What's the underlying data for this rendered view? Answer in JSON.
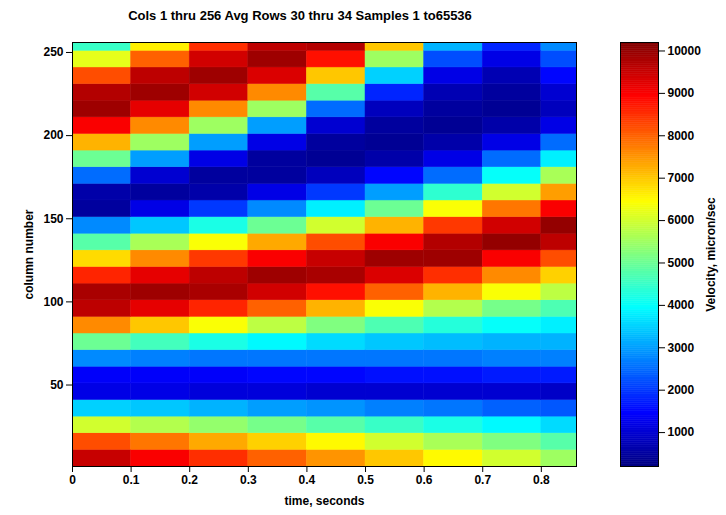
{
  "chart_data": {
    "type": "heatmap",
    "title": "Cols 1 thru 256 Avg Rows 30 thru 34 Samples 1 to65536",
    "x_label": "time, seconds",
    "y_label": "column number",
    "xlim": [
      0,
      0.86
    ],
    "ylim": [
      1,
      256
    ],
    "xticks": [
      0,
      0.1,
      0.2,
      0.3,
      0.4,
      0.5,
      0.6,
      0.7,
      0.8
    ],
    "yticks": [
      50,
      100,
      150,
      200,
      250
    ],
    "x_edges": [
      0,
      0.1,
      0.2,
      0.3,
      0.4,
      0.5,
      0.6,
      0.7,
      0.8,
      0.86
    ],
    "y_edges": [
      1,
      11,
      21,
      31,
      41,
      51,
      61,
      71,
      81,
      91,
      101,
      111,
      121,
      131,
      141,
      151,
      161,
      171,
      181,
      191,
      201,
      211,
      221,
      231,
      241,
      251,
      256
    ],
    "cells": [
      [
        9500,
        9000,
        8500,
        8000,
        7500,
        7000,
        6500,
        6000,
        5500
      ],
      [
        8200,
        7800,
        7300,
        6900,
        6500,
        6000,
        5600,
        5200,
        4800
      ],
      [
        6000,
        5700,
        5400,
        5100,
        4800,
        4500,
        4200,
        3900,
        3600
      ],
      [
        3500,
        3400,
        3200,
        3000,
        2900,
        2700,
        2600,
        2400,
        2300
      ],
      [
        1200,
        1200,
        1100,
        1100,
        1000,
        1000,
        1000,
        1000,
        900
      ],
      [
        1400,
        1400,
        1400,
        1500,
        1500,
        1600,
        1600,
        1700,
        1700
      ],
      [
        2800,
        2700,
        2600,
        2600,
        2600,
        2600,
        2600,
        2700,
        2700
      ],
      [
        5000,
        4600,
        4200,
        3900,
        3600,
        3400,
        3300,
        3200,
        3200
      ],
      [
        7600,
        7000,
        6400,
        5800,
        5200,
        4700,
        4300,
        4000,
        3800
      ],
      [
        9600,
        9200,
        8600,
        8000,
        7200,
        6400,
        5700,
        5100,
        4700
      ],
      [
        9800,
        9900,
        9800,
        9400,
        8800,
        8000,
        7200,
        6400,
        5800
      ],
      [
        8600,
        9200,
        9600,
        9900,
        9800,
        9300,
        8500,
        7600,
        6900
      ],
      [
        6800,
        7600,
        8400,
        9000,
        9500,
        9900,
        9900,
        9000,
        8200
      ],
      [
        4800,
        5600,
        6400,
        7300,
        8200,
        9000,
        9700,
        10000,
        9600
      ],
      [
        2800,
        3400,
        4200,
        5000,
        6000,
        7200,
        8400,
        9400,
        10000
      ],
      [
        500,
        1200,
        2000,
        2800,
        3800,
        5000,
        6400,
        7800,
        9000
      ],
      [
        600,
        500,
        600,
        1200,
        2000,
        3000,
        4400,
        6000,
        7400
      ],
      [
        2500,
        1000,
        500,
        500,
        800,
        1500,
        2500,
        4000,
        5600
      ],
      [
        5000,
        3000,
        1200,
        500,
        400,
        600,
        1200,
        2500,
        3800
      ],
      [
        7200,
        5500,
        3000,
        1200,
        500,
        400,
        600,
        1200,
        2500
      ],
      [
        9000,
        7600,
        5500,
        3000,
        1000,
        500,
        400,
        600,
        1200
      ],
      [
        9900,
        9200,
        7600,
        5500,
        2500,
        800,
        500,
        400,
        800
      ],
      [
        9700,
        9900,
        9400,
        7600,
        4800,
        1800,
        700,
        500,
        1000
      ],
      [
        8200,
        9600,
        9900,
        9300,
        7000,
        3500,
        1200,
        700,
        1500
      ],
      [
        6200,
        8000,
        9400,
        9900,
        8800,
        5500,
        2200,
        1200,
        2200
      ],
      [
        4500,
        6600,
        8500,
        9600,
        9700,
        7000,
        3200,
        1800,
        2800
      ]
    ],
    "colorbar": {
      "label": "Velocity, micron/sec",
      "range": [
        200,
        10200
      ],
      "ticks": [
        1000,
        2000,
        3000,
        4000,
        5000,
        6000,
        7000,
        8000,
        9000,
        10000
      ]
    }
  }
}
